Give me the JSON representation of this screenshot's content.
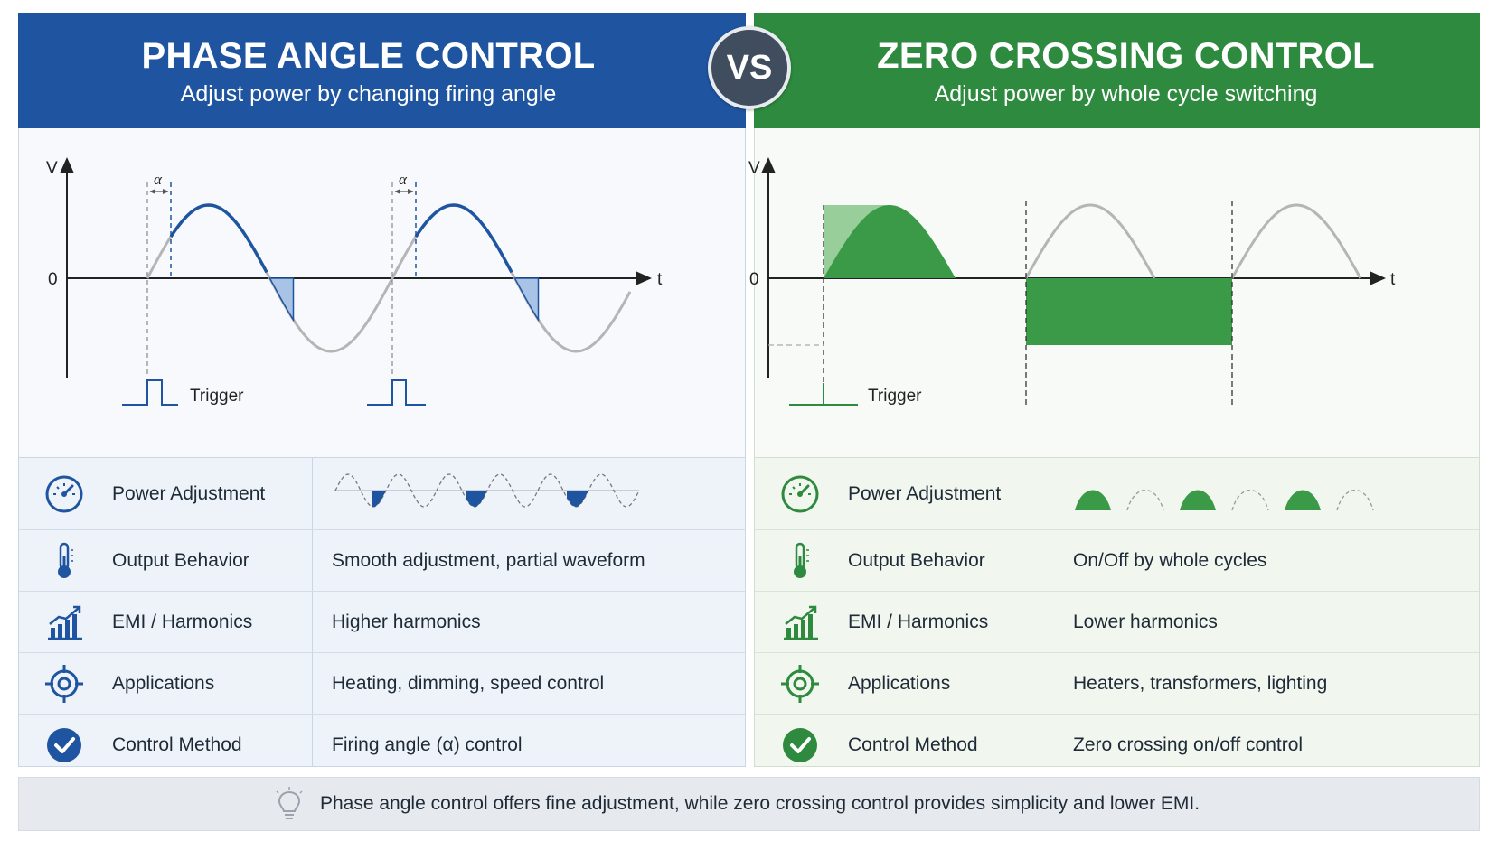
{
  "left": {
    "title": "PHASE ANGLE CONTROL",
    "subtitle": "Adjust power by changing firing angle",
    "diagram": {
      "v_label": "V",
      "zero_label": "0",
      "t_label": "t",
      "alpha_label": "α",
      "trigger_label": "Trigger"
    },
    "rows": [
      {
        "icon": "gauge-icon",
        "label": "Power Adjustment",
        "value": ""
      },
      {
        "icon": "thermometer-icon",
        "label": "Output Behavior",
        "value": "Smooth adjustment, partial waveform"
      },
      {
        "icon": "bar-chart-icon",
        "label": "EMI / Harmonics",
        "value": "Higher harmonics"
      },
      {
        "icon": "target-icon",
        "label": "Applications",
        "value": "Heating, dimming, speed control"
      },
      {
        "icon": "check-circle-icon",
        "label": "Control Method",
        "value": "Firing angle (α) control"
      }
    ]
  },
  "vs_label": "VS",
  "right": {
    "title": "ZERO CROSSING CONTROL",
    "subtitle": "Adjust power by whole cycle switching",
    "diagram": {
      "v_label": "V",
      "zero_label": "0",
      "t_label": "t",
      "trigger_label": "Trigger"
    },
    "rows": [
      {
        "icon": "gauge-icon",
        "label": "Power Adjustment",
        "value": ""
      },
      {
        "icon": "thermometer-icon",
        "label": "Output Behavior",
        "value": "On/Off by whole cycles"
      },
      {
        "icon": "bar-chart-icon",
        "label": "EMI / Harmonics",
        "value": "Lower harmonics"
      },
      {
        "icon": "target-icon",
        "label": "Applications",
        "value": "Heaters, transformers, lighting"
      },
      {
        "icon": "check-circle-icon",
        "label": "Control Method",
        "value": "Zero crossing on/off control"
      }
    ]
  },
  "footer": {
    "icon": "lightbulb-icon",
    "text": "Phase angle control offers fine adjustment, while zero crossing control provides simplicity and lower EMI."
  },
  "colors": {
    "blue": "#1f55a0",
    "green": "#2e8a3e",
    "vs": "#3f4d5e"
  }
}
